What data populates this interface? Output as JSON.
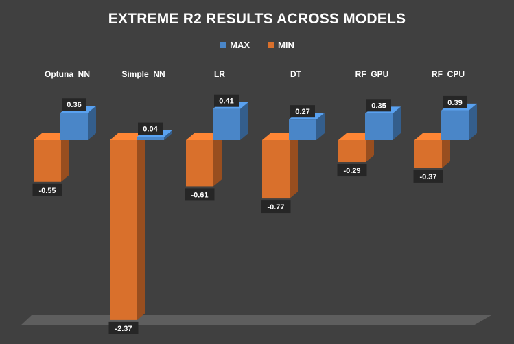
{
  "chart_data": {
    "type": "bar",
    "title": "EXTREME R2 RESULTS ACROSS MODELS",
    "categories": [
      "Optuna_NN",
      "Simple_NN",
      "LR",
      "DT",
      "RF_GPU",
      "RF_CPU"
    ],
    "series": [
      {
        "name": "MAX",
        "values": [
          0.36,
          0.04,
          0.41,
          0.27,
          0.35,
          0.39
        ],
        "color": "#4a86c8"
      },
      {
        "name": "MIN",
        "values": [
          -0.55,
          -2.37,
          -0.61,
          -0.77,
          -0.29,
          -0.37
        ],
        "color": "#d9702c"
      }
    ],
    "labels": {
      "max": [
        "0.36",
        "0.04",
        "0.41",
        "0.27",
        "0.35",
        "0.39"
      ],
      "min": [
        "-0.55",
        "-2.37",
        "-0.61",
        "-0.77",
        "-0.29",
        "-0.37"
      ]
    },
    "legend_position": "top",
    "category_labels_position": "top",
    "grid": false,
    "background_color": "#404040",
    "text_color": "#ffffff"
  }
}
